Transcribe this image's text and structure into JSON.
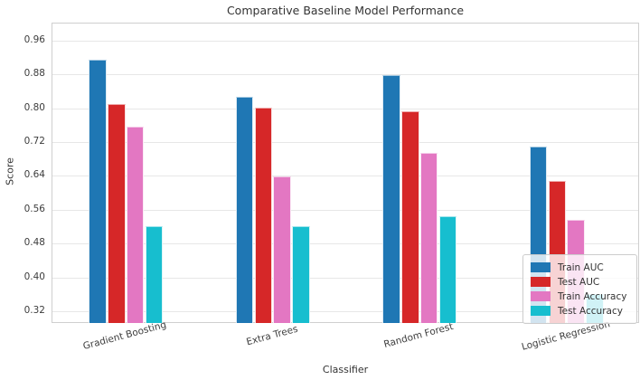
{
  "chart_data": {
    "type": "bar",
    "title": "Comparative Baseline Model Performance",
    "xlabel": "Classifier",
    "ylabel": "Score",
    "categories": [
      "Gradient Boosting",
      "Extra Trees",
      "Random Forest",
      "Logistic Regression"
    ],
    "series": [
      {
        "name": "Train AUC",
        "color": "#1f77b4",
        "values": [
          0.915,
          0.826,
          0.878,
          0.71
        ]
      },
      {
        "name": "Test AUC",
        "color": "#d62728",
        "values": [
          0.81,
          0.802,
          0.793,
          0.628
        ]
      },
      {
        "name": "Train Accuracy",
        "color": "#e377c2",
        "values": [
          0.757,
          0.638,
          0.694,
          0.535
        ]
      },
      {
        "name": "Test Accuracy",
        "color": "#17becf",
        "values": [
          0.522,
          0.521,
          0.544,
          0.36
        ]
      }
    ],
    "ylim": [
      0.29,
      1.0
    ],
    "yticks": [
      0.32,
      0.4,
      0.48,
      0.56,
      0.64,
      0.72,
      0.8,
      0.88,
      0.96
    ],
    "grid": true,
    "legend_position": "lower right",
    "colors": {
      "text": "#333333",
      "tick_text": "#3d3d3d",
      "grid": "#e7e7e7",
      "spine": "#cfcfcf",
      "background": "#ffffff"
    }
  }
}
